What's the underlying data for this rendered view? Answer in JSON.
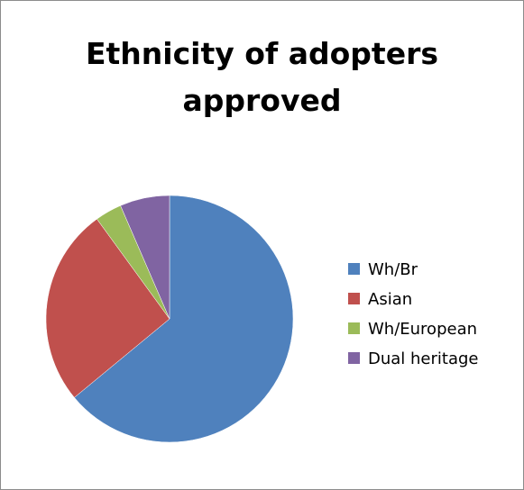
{
  "chart_data": {
    "type": "pie",
    "title_lines": [
      "Ethnicity of adopters",
      "approved"
    ],
    "categories": [
      "Wh/Br",
      "Asian",
      "Wh/European",
      "Dual heritage"
    ],
    "values": [
      64,
      26,
      3.5,
      6.5
    ],
    "colors": [
      "#4F81BD",
      "#C0504D",
      "#9BBB59",
      "#8064A2"
    ],
    "legend_position": "right",
    "start_angle_deg": 0,
    "direction": "clockwise"
  }
}
